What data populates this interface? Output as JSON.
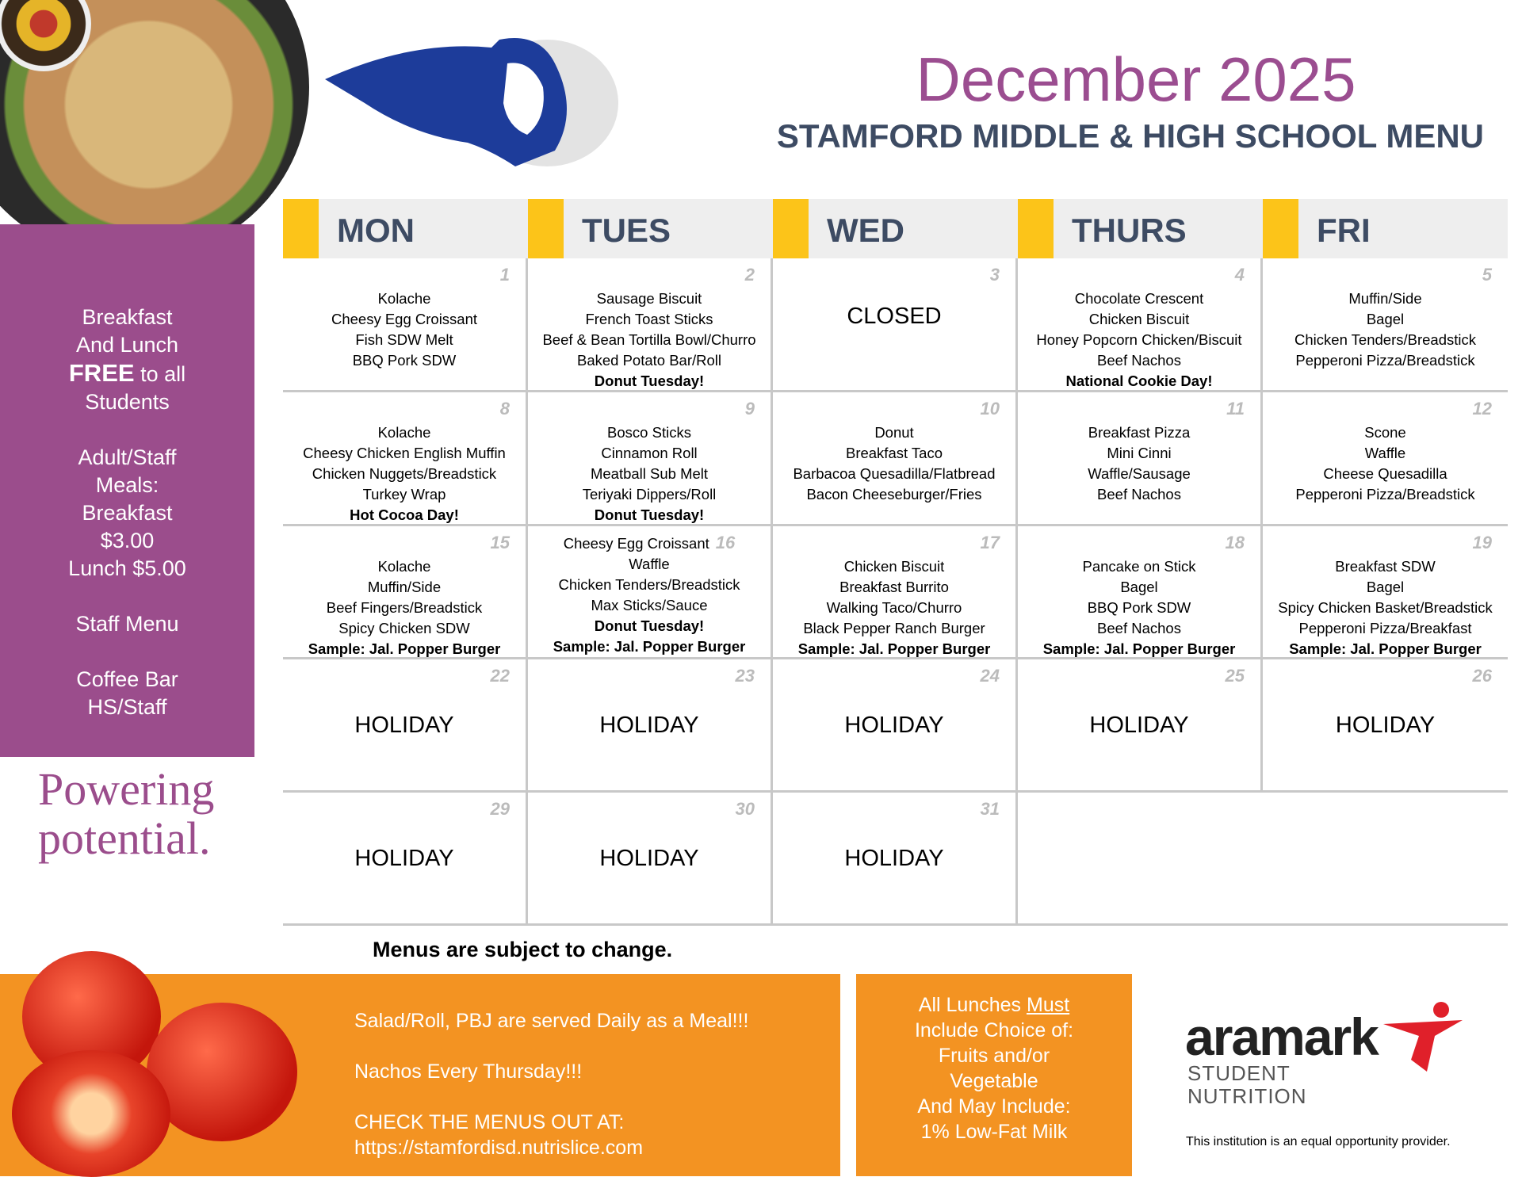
{
  "header": {
    "title": "December 2025",
    "subtitle": "STAMFORD MIDDLE & HIGH SCHOOL MENU"
  },
  "sidebar": {
    "free_line1": "Breakfast",
    "free_line2": "And Lunch",
    "free_bold": "FREE",
    "free_rest": " to all",
    "free_line4": "Students",
    "adult1": "Adult/Staff",
    "adult2": "Meals:",
    "adult3": "Breakfast",
    "adult4": "$3.00",
    "adult5": "Lunch $5.00",
    "staff_menu": "Staff Menu",
    "coffee1": "Coffee Bar",
    "coffee2": "HS/Staff"
  },
  "brand": {
    "powering1": "Powering",
    "powering2": "potential."
  },
  "days": [
    "MON",
    "TUES",
    "WED",
    "THURS",
    "FRI"
  ],
  "colors": {
    "purple": "#9b4d8c",
    "yellow": "#fcc419",
    "orange": "#f39322",
    "navy": "#3d4b63"
  },
  "weeks": [
    [
      {
        "d": "1",
        "items": [
          "Kolache",
          "Cheesy Egg Croissant",
          "Fish SDW Melt",
          "BBQ Pork SDW"
        ],
        "bold": []
      },
      {
        "d": "2",
        "items": [
          "Sausage Biscuit",
          "French Toast Sticks",
          "Beef & Bean Tortilla Bowl/Churro",
          "Baked Potato Bar/Roll"
        ],
        "bold": [
          "Donut Tuesday!"
        ]
      },
      {
        "d": "3",
        "big": "CLOSED"
      },
      {
        "d": "4",
        "items": [
          "Chocolate Crescent",
          "Chicken Biscuit",
          "Honey Popcorn Chicken/Biscuit",
          "Beef Nachos"
        ],
        "bold": [
          "National Cookie Day!"
        ]
      },
      {
        "d": "5",
        "items": [
          "Muffin/Side",
          "Bagel",
          "Chicken Tenders/Breadstick",
          "Pepperoni Pizza/Breadstick"
        ],
        "bold": []
      }
    ],
    [
      {
        "d": "8",
        "items": [
          "Kolache",
          "Cheesy Chicken English Muffin",
          "Chicken Nuggets/Breadstick",
          "Turkey Wrap"
        ],
        "bold": [
          "Hot Cocoa Day!"
        ]
      },
      {
        "d": "9",
        "items": [
          "Bosco Sticks",
          "Cinnamon Roll",
          "Meatball Sub Melt",
          "Teriyaki Dippers/Roll"
        ],
        "bold": [
          "Donut Tuesday!"
        ]
      },
      {
        "d": "10",
        "items": [
          "Donut",
          "Breakfast Taco",
          "Barbacoa Quesadilla/Flatbread",
          "Bacon Cheeseburger/Fries"
        ],
        "bold": []
      },
      {
        "d": "11",
        "items": [
          "Breakfast Pizza",
          "Mini Cinni",
          "Waffle/Sausage",
          "Beef Nachos"
        ],
        "bold": []
      },
      {
        "d": "12",
        "items": [
          "Scone",
          "Waffle",
          "Cheese Quesadilla",
          "Pepperoni Pizza/Breadstick"
        ],
        "bold": []
      }
    ],
    [
      {
        "d": "15",
        "items": [
          "Kolache",
          "Muffin/Side",
          "Beef Fingers/Breadstick",
          "Spicy Chicken SDW"
        ],
        "bold": [
          "Sample: Jal. Popper Burger"
        ]
      },
      {
        "d": "16",
        "inline": true,
        "items": [
          "Cheesy Egg Croissant",
          "Waffle",
          "Chicken Tenders/Breadstick",
          "Max Sticks/Sauce"
        ],
        "bold": [
          "Donut Tuesday!",
          "Sample: Jal. Popper Burger"
        ]
      },
      {
        "d": "17",
        "items": [
          "Chicken Biscuit",
          "Breakfast Burrito",
          "Walking Taco/Churro",
          "Black Pepper Ranch Burger"
        ],
        "bold": [
          "Sample: Jal. Popper Burger"
        ]
      },
      {
        "d": "18",
        "items": [
          "Pancake on Stick",
          "Bagel",
          "BBQ Pork SDW",
          "Beef Nachos"
        ],
        "bold": [
          "Sample: Jal. Popper Burger"
        ]
      },
      {
        "d": "19",
        "items": [
          "Breakfast SDW",
          "Bagel",
          "Spicy Chicken Basket/Breadstick",
          "Pepperoni Pizza/Breakfast"
        ],
        "bold": [
          "Sample: Jal. Popper Burger"
        ]
      }
    ],
    [
      {
        "d": "22",
        "big": "HOLIDAY"
      },
      {
        "d": "23",
        "big": "HOLIDAY"
      },
      {
        "d": "24",
        "big": "HOLIDAY"
      },
      {
        "d": "25",
        "big": "HOLIDAY"
      },
      {
        "d": "26",
        "big": "HOLIDAY"
      }
    ],
    [
      {
        "d": "29",
        "big": "HOLIDAY"
      },
      {
        "d": "30",
        "big": "HOLIDAY"
      },
      {
        "d": "31",
        "big": "HOLIDAY"
      }
    ]
  ],
  "footer": {
    "note": "Menus are subject to change.",
    "line1": "Salad/Roll, PBJ are served Daily as a Meal!!!",
    "line2": "Nachos Every Thursday!!!",
    "line3": "CHECK THE MENUS OUT AT:",
    "url": "https://stamfordisd.nutrislice.com",
    "lunch1": "All Lunches ",
    "lunch_must": "Must",
    "lunch2": "Include Choice of:",
    "lunch3": "Fruits and/or",
    "lunch4": "Vegetable",
    "lunch5": "And May Include:",
    "lunch6": "1% Low-Fat Milk",
    "aramark": "aramark",
    "student": "STUDENT",
    "nutrition": "NUTRITION",
    "equal": "This institution is an equal opportunity provider."
  }
}
